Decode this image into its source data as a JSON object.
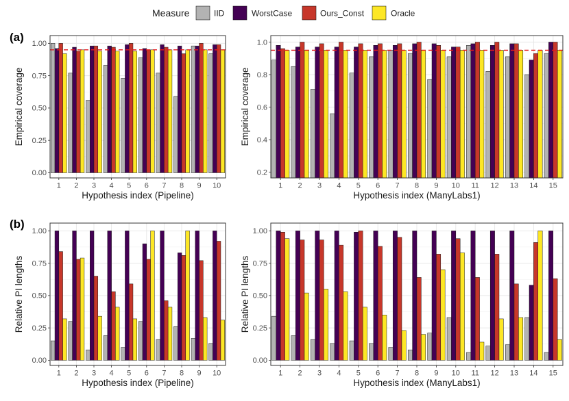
{
  "legend": {
    "title": "Measure",
    "items": [
      {
        "name": "IID",
        "color": "#b3b3b3"
      },
      {
        "name": "WorstCase",
        "color": "#440154"
      },
      {
        "name": "Ours_Const",
        "color": "#c7372a"
      },
      {
        "name": "Oracle",
        "color": "#fde725"
      }
    ]
  },
  "row_labels": {
    "a": "(a)",
    "b": "(b)"
  },
  "chart_data": [
    {
      "id": "a-pipeline",
      "type": "bar",
      "row": "a",
      "xlabel": "Hypothesis index (Pipeline)",
      "ylabel": "Empirical coverage",
      "categories": [
        "1",
        "2",
        "3",
        "4",
        "5",
        "6",
        "7",
        "8",
        "9",
        "10"
      ],
      "ylim": [
        -0.04,
        1.06
      ],
      "yticks": [
        0,
        0.25,
        0.5,
        0.75,
        1
      ],
      "ytick_labels": [
        "0.00",
        "0.25",
        "0.50",
        "0.75",
        "1.00"
      ],
      "refline": 0.95,
      "series": [
        {
          "name": "IID",
          "values": [
            1.0,
            0.77,
            0.56,
            0.83,
            0.73,
            0.89,
            0.77,
            0.59,
            0.98,
            0.92
          ]
        },
        {
          "name": "WorstCase",
          "values": [
            0.96,
            0.97,
            0.98,
            0.98,
            0.99,
            0.96,
            0.99,
            0.98,
            0.98,
            0.99
          ]
        },
        {
          "name": "Ours_Const",
          "values": [
            1.0,
            0.94,
            0.98,
            0.97,
            1.0,
            0.95,
            0.97,
            0.92,
            1.0,
            0.99
          ]
        },
        {
          "name": "Oracle",
          "values": [
            0.92,
            0.95,
            0.94,
            0.94,
            0.94,
            0.95,
            0.95,
            0.95,
            0.95,
            0.95
          ]
        }
      ]
    },
    {
      "id": "a-manylabs",
      "type": "bar",
      "row": "a",
      "xlabel": "Hypothesis index (ManyLabs1)",
      "ylabel": "Empirical coverage",
      "categories": [
        "1",
        "2",
        "3",
        "4",
        "5",
        "6",
        "7",
        "8",
        "9",
        "10",
        "11",
        "12",
        "13",
        "14",
        "15"
      ],
      "ylim": [
        0.165,
        1.04
      ],
      "yticks": [
        0.2,
        0.4,
        0.6,
        0.8,
        1.0
      ],
      "ytick_labels": [
        "0.2",
        "0.4",
        "0.6",
        "0.8",
        "1.0"
      ],
      "refline": 0.95,
      "series": [
        {
          "name": "IID",
          "values": [
            0.89,
            0.85,
            0.71,
            0.56,
            0.81,
            0.91,
            0.95,
            0.93,
            0.77,
            0.91,
            0.98,
            0.82,
            0.91,
            0.8,
            0.93
          ]
        },
        {
          "name": "WorstCase",
          "values": [
            0.98,
            0.97,
            0.97,
            0.97,
            0.97,
            0.98,
            0.98,
            0.99,
            0.99,
            0.97,
            0.99,
            0.98,
            0.99,
            0.89,
            1.0
          ]
        },
        {
          "name": "Ours_Const",
          "values": [
            0.96,
            1.0,
            0.99,
            1.0,
            0.99,
            0.99,
            0.99,
            1.0,
            0.98,
            0.97,
            1.0,
            1.0,
            0.99,
            0.93,
            1.0
          ]
        },
        {
          "name": "Oracle",
          "values": [
            0.95,
            0.95,
            0.95,
            0.95,
            0.95,
            0.95,
            0.95,
            0.95,
            0.95,
            0.95,
            0.95,
            0.95,
            0.95,
            0.95,
            0.95
          ]
        }
      ]
    },
    {
      "id": "b-pipeline",
      "type": "bar",
      "row": "b",
      "xlabel": "Hypothesis index (Pipeline)",
      "ylabel": "Relative PI lengths",
      "categories": [
        "1",
        "2",
        "3",
        "4",
        "5",
        "6",
        "7",
        "8",
        "9",
        "10"
      ],
      "ylim": [
        -0.04,
        1.06
      ],
      "yticks": [
        0,
        0.25,
        0.5,
        0.75,
        1
      ],
      "ytick_labels": [
        "0.00",
        "0.25",
        "0.50",
        "0.75",
        "1.00"
      ],
      "series": [
        {
          "name": "IID",
          "values": [
            0.15,
            0.3,
            0.08,
            0.19,
            0.1,
            0.3,
            0.16,
            0.26,
            0.17,
            0.13
          ]
        },
        {
          "name": "WorstCase",
          "values": [
            1.0,
            1.0,
            1.0,
            1.0,
            1.0,
            0.9,
            1.0,
            0.83,
            1.0,
            1.0
          ]
        },
        {
          "name": "Ours_Const",
          "values": [
            0.84,
            0.78,
            0.65,
            0.53,
            0.59,
            0.78,
            0.46,
            0.81,
            0.77,
            0.92
          ]
        },
        {
          "name": "Oracle",
          "values": [
            0.32,
            0.79,
            0.34,
            0.41,
            0.32,
            1.0,
            0.41,
            1.0,
            0.33,
            0.31
          ]
        }
      ]
    },
    {
      "id": "b-manylabs",
      "type": "bar",
      "row": "b",
      "xlabel": "Hypothesis index (ManyLabs1)",
      "ylabel": "Relative PI lengths",
      "categories": [
        "1",
        "2",
        "3",
        "4",
        "5",
        "6",
        "7",
        "8",
        "9",
        "10",
        "11",
        "12",
        "13",
        "14",
        "15"
      ],
      "ylim": [
        -0.04,
        1.06
      ],
      "yticks": [
        0,
        0.25,
        0.5,
        0.75,
        1
      ],
      "ytick_labels": [
        "0.00",
        "0.25",
        "0.50",
        "0.75",
        "1.00"
      ],
      "series": [
        {
          "name": "IID",
          "values": [
            0.34,
            0.19,
            0.16,
            0.13,
            0.15,
            0.13,
            0.1,
            0.08,
            0.21,
            0.33,
            0.06,
            0.11,
            0.12,
            0.33,
            0.06
          ]
        },
        {
          "name": "WorstCase",
          "values": [
            1.0,
            1.0,
            1.0,
            1.0,
            0.99,
            1.0,
            1.0,
            1.0,
            1.0,
            1.0,
            1.0,
            1.0,
            1.0,
            0.58,
            1.0
          ]
        },
        {
          "name": "Ours_Const",
          "values": [
            0.99,
            0.93,
            0.93,
            0.89,
            1.0,
            0.88,
            0.95,
            0.64,
            0.82,
            0.94,
            0.64,
            0.82,
            0.59,
            0.91,
            0.63
          ]
        },
        {
          "name": "Oracle",
          "values": [
            0.94,
            0.52,
            0.55,
            0.53,
            0.41,
            0.35,
            0.23,
            0.2,
            0.7,
            0.83,
            0.14,
            0.32,
            0.33,
            1.0,
            0.16
          ]
        }
      ]
    }
  ]
}
